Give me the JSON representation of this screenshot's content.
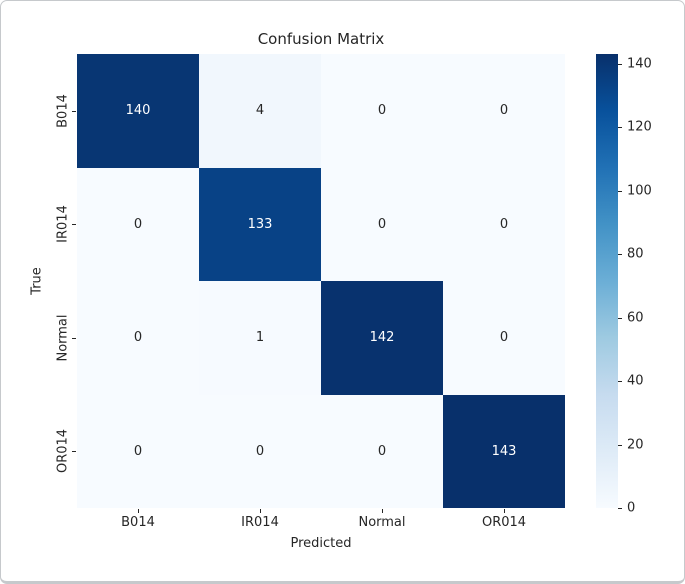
{
  "window": {
    "background_color": "#ffffff",
    "border_color": "#c6c9cc"
  },
  "chart_data": {
    "type": "heatmap",
    "title": "Confusion Matrix",
    "xlabel": "Predicted",
    "ylabel": "True",
    "x_categories": [
      "B014",
      "IR014",
      "Normal",
      "OR014"
    ],
    "y_categories": [
      "B014",
      "IR014",
      "Normal",
      "OR014"
    ],
    "matrix": [
      [
        140,
        4,
        0,
        0
      ],
      [
        0,
        133,
        0,
        0
      ],
      [
        0,
        1,
        142,
        0
      ],
      [
        0,
        0,
        0,
        143
      ]
    ],
    "vmin": 0,
    "vmax": 143,
    "colormap": "Blues",
    "colormap_anchors": [
      "#f7fbff",
      "#deebf7",
      "#c6dbef",
      "#9ecae1",
      "#6baed6",
      "#4292c6",
      "#2171b5",
      "#08519c",
      "#08306b"
    ],
    "annotation_color_on_dark": "#ffffff",
    "annotation_color_on_light": "#262626",
    "colorbar": {
      "position": "right",
      "ticks": [
        0,
        20,
        40,
        60,
        80,
        100,
        120,
        140
      ]
    },
    "grid": false,
    "legend_position": "none"
  }
}
